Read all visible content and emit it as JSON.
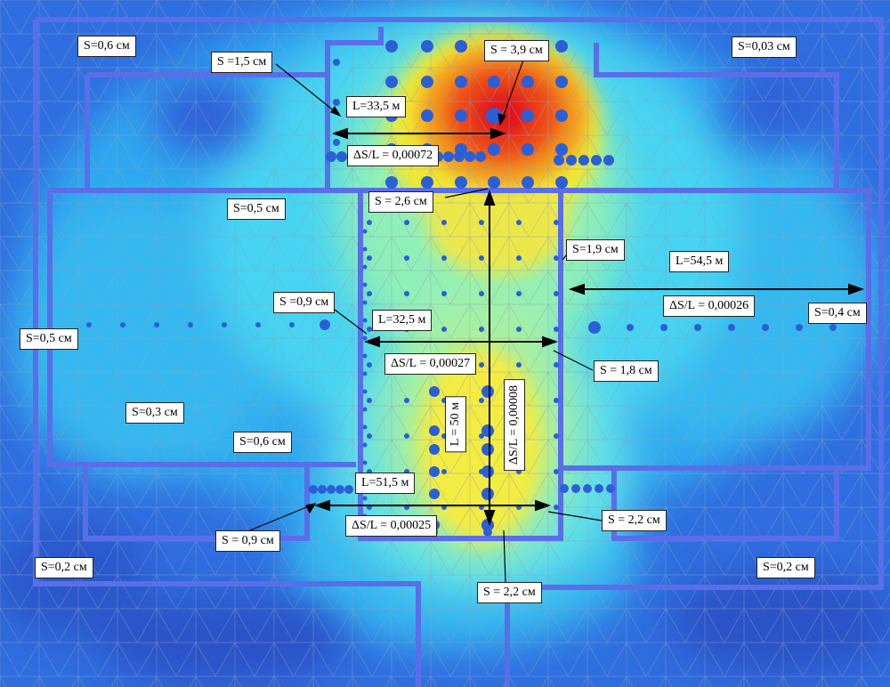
{
  "colors": {
    "background": "#2f6ee0",
    "max_zone": "#e8141a",
    "high_zone": "#f07a16",
    "mid_zone": "#f2e224",
    "low_zone": "#7ef0c8",
    "very_low_zone": "#35c8f0",
    "walls": "#5a6ee8",
    "piles": "#2a5fd8"
  },
  "labels": {
    "s_06_top": "S=0,6 см",
    "s_15": "S =1,5 см",
    "s_39": "S = 3,9 см",
    "s_003": "S=0,03 см",
    "s_05_mid": "S=0,5 см",
    "s_26": "S = 2,6 см",
    "s_19": "S=1,9 см",
    "s_09_mid": "S =0,9 см",
    "s_05_left": "S=0,5 см",
    "s_04_right": "S=0,4 см",
    "s_18": "S = 1,8 см",
    "s_03": "S=0,3 см",
    "s_06_low": "S=0,6 см",
    "s_09_low": "S = 0,9 см",
    "s_22_right": "S = 2,2 см",
    "s_02_left": "S=0,2 см",
    "s_02_right": "S=0,2 см",
    "s_22_bottom": "S = 2,2 см"
  },
  "dimensions": {
    "l_335": "L=33,5 м",
    "ratio_00072": "ΔS/L = 0,00072",
    "l_545": "L=54,5 м",
    "ratio_00026": "ΔS/L = 0,00026",
    "l_325": "L=32,5 м",
    "ratio_00027": "ΔS/L = 0,00027",
    "l_50": "L = 50 м",
    "ratio_00008": "ΔS/L = 0,00008",
    "l_515": "L=51,5 м",
    "ratio_00025": "ΔS/L = 0,00025"
  }
}
